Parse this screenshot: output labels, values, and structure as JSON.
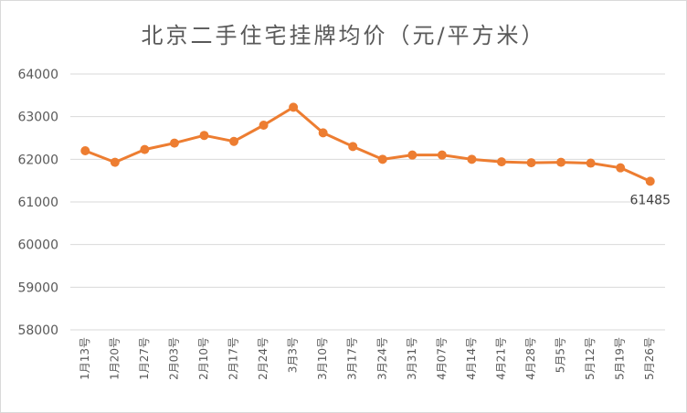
{
  "chart_data": {
    "type": "line",
    "title": "北京二手住宅挂牌均价（元/平方米）",
    "xlabel": "",
    "ylabel": "",
    "categories": [
      "1月13号",
      "1月20号",
      "1月27号",
      "2月03号",
      "2月10号",
      "2月17号",
      "2月24号",
      "3月3号",
      "3月10号",
      "3月17号",
      "3月24号",
      "3月31号",
      "4月07号",
      "4月14号",
      "4月21号",
      "4月28号",
      "5月5号",
      "5月12号",
      "5月19号",
      "5月26号"
    ],
    "series": [
      {
        "values": [
          62200,
          61930,
          62230,
          62380,
          62560,
          62420,
          62800,
          63220,
          62620,
          62300,
          62000,
          62100,
          62100,
          62000,
          61940,
          61920,
          61930,
          61910,
          61800,
          61485
        ]
      }
    ],
    "ylim": [
      58000,
      64000
    ],
    "yticks": [
      58000,
      59000,
      60000,
      61000,
      62000,
      63000,
      64000
    ],
    "grid": true,
    "legend": "none",
    "annotations": [
      {
        "category": "5月26号",
        "text": "61485"
      }
    ],
    "colors": {
      "line": "#ed7d31",
      "grid": "#d9d9d9",
      "text": "#595959"
    }
  }
}
